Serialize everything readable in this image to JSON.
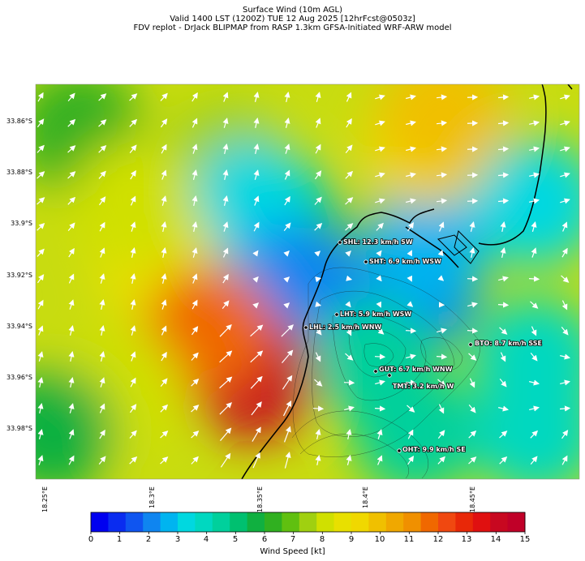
{
  "title": {
    "line1": "Surface Wind (10m AGL)",
    "line2": "Valid 1400 LST (1200Z) TUE 12 Aug 2025 [12hrFcst@0503z]",
    "line3": "FDV replot - DrJack BLIPMAP from RASP 1.3km GFSA-Initiated WRF-ARW model"
  },
  "lat_labels": [
    "33.86°S",
    "33.88°S",
    "33.9°S",
    "33.92°S",
    "33.94°S",
    "33.96°S",
    "33.98°S"
  ],
  "lon_labels": [
    "18.25°E",
    "18.3°E",
    "18.35°E",
    "18.4°E",
    "18.45°E"
  ],
  "stations": [
    {
      "label": "SHL: 12.3 km/h SW"
    },
    {
      "label": "SHT: 6.9 km/h WSW"
    },
    {
      "label": "LHT: 5.9 km/h WSW"
    },
    {
      "label": "LHL: 2.5 km/h WNW"
    },
    {
      "label": "BTO: 8.7 km/h SSE"
    },
    {
      "label": "GUT: 6.7 km/h WNW"
    },
    {
      "label": "TMT: 3.2 km/h W"
    },
    {
      "label": "OHT: 9.9 km/h SE"
    }
  ],
  "colorbar": {
    "title": "Wind Speed [kt]",
    "ticks": [
      "0",
      "1",
      "2",
      "3",
      "4",
      "5",
      "6",
      "7",
      "8",
      "9",
      "10",
      "11",
      "12",
      "13",
      "14",
      "15"
    ],
    "colors": [
      "#0000f0",
      "#0a2cf0",
      "#0f55f0",
      "#0f85f0",
      "#00b4f0",
      "#00d8e0",
      "#00d8c0",
      "#00d09c",
      "#00c070",
      "#10b040",
      "#30b020",
      "#60c010",
      "#a0d010",
      "#d0e000",
      "#e8e000",
      "#f0d800",
      "#f0c000",
      "#f0a800",
      "#f09000",
      "#f06800",
      "#f04810",
      "#e82808",
      "#e01010",
      "#c80820",
      "#c00028"
    ],
    "stops": [
      0,
      0.6,
      1.2,
      1.8,
      2.4,
      3.0,
      3.6,
      4.2,
      4.8,
      5.4,
      6.0,
      6.6,
      7.2,
      7.8,
      8.4,
      9.0,
      9.6,
      10.2,
      10.8,
      11.4,
      12.0,
      12.6,
      13.2,
      13.8,
      14.4,
      15
    ]
  },
  "wind_field": {
    "blobs": [
      {
        "speed_kt": 6.0,
        "lon": 0.08,
        "lat": 0.12
      },
      {
        "speed_kt": 7.5,
        "lon": 0.35,
        "lat": 0.2
      },
      {
        "speed_kt": 5.2,
        "lon": 0.45,
        "lat": 0.35
      },
      {
        "speed_kt": 3.4,
        "lon": 0.4,
        "lat": 0.3
      },
      {
        "speed_kt": 2.6,
        "lon": 0.45,
        "lat": 0.5
      },
      {
        "speed_kt": 1.8,
        "lon": 0.5,
        "lat": 0.52
      },
      {
        "speed_kt": 2.2,
        "lon": 0.7,
        "lat": 0.52
      },
      {
        "speed_kt": 2.8,
        "lon": 0.72,
        "lat": 0.4
      },
      {
        "speed_kt": 3.0,
        "lon": 0.92,
        "lat": 0.3
      },
      {
        "speed_kt": 9.5,
        "lon": 0.72,
        "lat": 0.15
      },
      {
        "speed_kt": 9.8,
        "lon": 0.75,
        "lat": 0.08
      },
      {
        "speed_kt": 8.6,
        "lon": 0.22,
        "lat": 0.45
      },
      {
        "speed_kt": 14.0,
        "lon": 0.4,
        "lat": 0.74
      },
      {
        "speed_kt": 11.5,
        "lon": 0.32,
        "lat": 0.62
      },
      {
        "speed_kt": 8.2,
        "lon": 0.16,
        "lat": 0.78
      },
      {
        "speed_kt": 4.5,
        "lon": 0.62,
        "lat": 0.7
      },
      {
        "speed_kt": 4.2,
        "lon": 0.7,
        "lat": 0.88
      },
      {
        "speed_kt": 4.0,
        "lon": 0.92,
        "lat": 0.88
      },
      {
        "speed_kt": 5.5,
        "lon": 0.03,
        "lat": 0.88
      },
      {
        "speed_kt": 4.0,
        "lon": 0.92,
        "lat": 0.7
      },
      {
        "speed_kt": 8.0,
        "lon": 0.18,
        "lat": 0.3
      }
    ]
  }
}
